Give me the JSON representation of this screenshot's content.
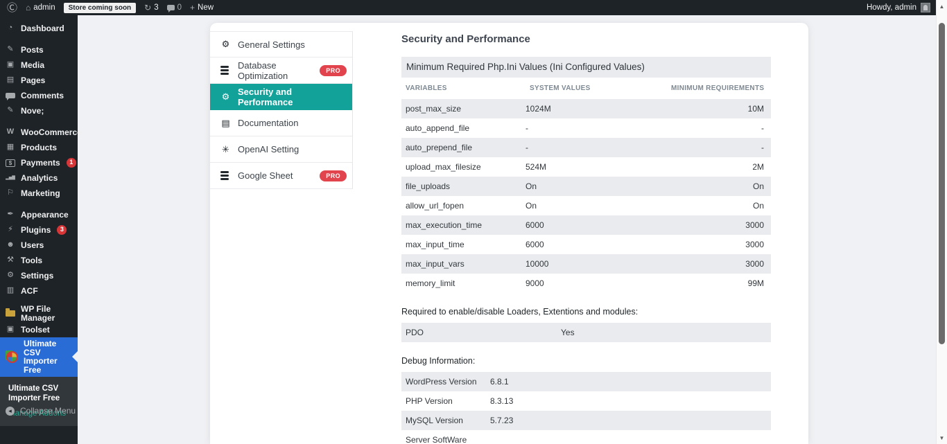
{
  "admin_bar": {
    "site_name": "admin",
    "store_badge": "Store coming soon",
    "updates_count": "3",
    "comments_count": "0",
    "new_label": "New",
    "howdy": "Howdy, admin"
  },
  "sidebar": {
    "groups": [
      [
        {
          "label": "Dashboard",
          "icon": "dashboard"
        }
      ],
      [
        {
          "label": "Posts",
          "icon": "pushpin"
        },
        {
          "label": "Media",
          "icon": "media"
        },
        {
          "label": "Pages",
          "icon": "pages"
        },
        {
          "label": "Comments",
          "icon": "comment-bubble"
        },
        {
          "label": "Nove;",
          "icon": "pushpin"
        }
      ],
      [
        {
          "label": "WooCommerce",
          "icon": "woocommerce"
        },
        {
          "label": "Products",
          "icon": "products"
        },
        {
          "label": "Payments",
          "icon": "payments",
          "badge": "1"
        },
        {
          "label": "Analytics",
          "icon": "analytics"
        },
        {
          "label": "Marketing",
          "icon": "marketing"
        }
      ],
      [
        {
          "label": "Appearance",
          "icon": "appearance"
        },
        {
          "label": "Plugins",
          "icon": "plugin",
          "badge": "3"
        },
        {
          "label": "Users",
          "icon": "users"
        },
        {
          "label": "Tools",
          "icon": "tools"
        },
        {
          "label": "Settings",
          "icon": "settings"
        },
        {
          "label": "ACF",
          "icon": "acf"
        }
      ],
      [
        {
          "label": "WP File Manager",
          "icon": "folder"
        },
        {
          "label": "Toolset",
          "icon": "toolset"
        }
      ]
    ],
    "active_item": {
      "label": "Ultimate CSV Importer Free",
      "icon": "csv-importer-logo"
    },
    "submenu": {
      "title": "Ultimate CSV Importer Free",
      "link": "Manage Addons"
    },
    "collapse_label": "Collapse Menu"
  },
  "tabs": {
    "pro_label": "PRO",
    "items": [
      {
        "label": "General Settings",
        "icon": "gear",
        "pro": false,
        "active": false
      },
      {
        "label": "Database Optimization",
        "icon": "database",
        "pro": true,
        "active": false
      },
      {
        "label": "Security and Performance",
        "icon": "gear",
        "pro": false,
        "active": true
      },
      {
        "label": "Documentation",
        "icon": "document",
        "pro": false,
        "active": false
      },
      {
        "label": "OpenAI Setting",
        "icon": "openai",
        "pro": false,
        "active": false
      },
      {
        "label": "Google Sheet",
        "icon": "database",
        "pro": true,
        "active": false
      }
    ]
  },
  "main": {
    "title": "Security and Performance",
    "table_title": "Minimum Required Php.Ini Values (Ini Configured Values)",
    "columns": [
      "VARIABLES",
      "SYSTEM VALUES",
      "MINIMUM REQUIREMENTS"
    ],
    "rows": [
      {
        "variable": "post_max_size",
        "system_value": "1024M",
        "minimum_requirement": "10M"
      },
      {
        "variable": "auto_append_file",
        "system_value": "-",
        "minimum_requirement": "-"
      },
      {
        "variable": "auto_prepend_file",
        "system_value": "-",
        "minimum_requirement": "-"
      },
      {
        "variable": "upload_max_filesize",
        "system_value": "524M",
        "minimum_requirement": "2M"
      },
      {
        "variable": "file_uploads",
        "system_value": "On",
        "minimum_requirement": "On"
      },
      {
        "variable": "allow_url_fopen",
        "system_value": "On",
        "minimum_requirement": "On"
      },
      {
        "variable": "max_execution_time",
        "system_value": "6000",
        "minimum_requirement": "3000"
      },
      {
        "variable": "max_input_time",
        "system_value": "6000",
        "minimum_requirement": "3000"
      },
      {
        "variable": "max_input_vars",
        "system_value": "10000",
        "minimum_requirement": "3000"
      },
      {
        "variable": "memory_limit",
        "system_value": "9000",
        "minimum_requirement": "99M"
      }
    ],
    "loaders_label": "Required to enable/disable Loaders, Extentions and modules:",
    "loaders_rows": [
      {
        "name": "PDO",
        "value": "Yes"
      }
    ],
    "debug_label": "Debug Information:",
    "debug_rows": [
      {
        "name": "WordPress Version",
        "value": "6.8.1"
      },
      {
        "name": "PHP Version",
        "value": "8.3.13"
      },
      {
        "name": "MySQL Version",
        "value": "5.7.23"
      },
      {
        "name": "Server SoftWare",
        "value": ""
      }
    ]
  },
  "colors": {
    "active_tab_teal": "#12a29a",
    "active_menu_blue": "#2a6cd6",
    "pro_badge_red": "#e2444e",
    "notification_badge_red": "#d63638",
    "row_stripe_gray": "#e9ebee",
    "admin_bar_bg": "#1d2327"
  }
}
